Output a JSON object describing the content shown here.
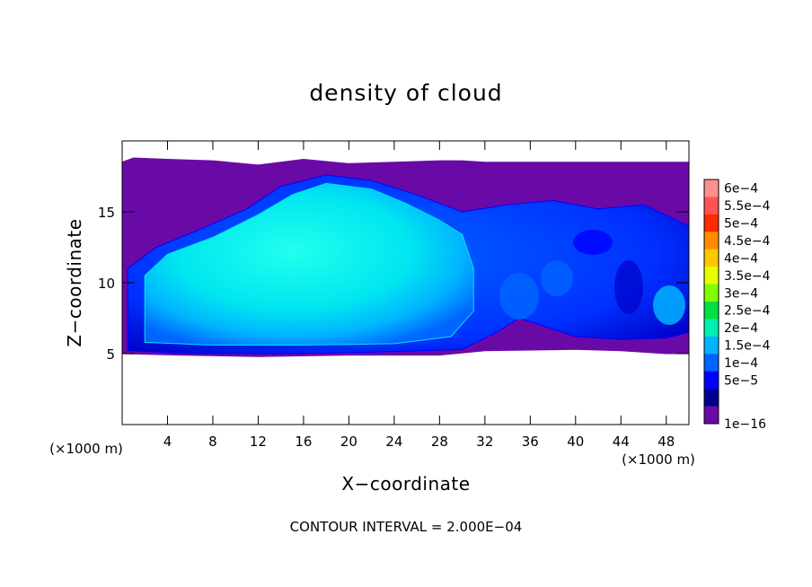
{
  "chart_data": {
    "type": "contour",
    "title": "density of cloud",
    "xlabel": "X−coordinate",
    "ylabel": "Z−coordinate",
    "x_unit": "(×1000 m)",
    "y_unit": "(×1000 m)",
    "xlim": [
      0,
      50
    ],
    "ylim": [
      0,
      20
    ],
    "x_ticks": [
      4,
      8,
      12,
      16,
      20,
      24,
      28,
      32,
      36,
      40,
      44,
      48
    ],
    "y_ticks": [
      5,
      10,
      15
    ],
    "contour_interval_label": "CONTOUR INTERVAL = 2.000E−04",
    "colorbar": {
      "levels": [
        "6e−4",
        "5.5e−4",
        "5e−4",
        "4.5e−4",
        "4e−4",
        "3.5e−4",
        "3e−4",
        "2.5e−4",
        "2e−4",
        "1.5e−4",
        "1e−4",
        "5e−5",
        "1e−16"
      ],
      "colors": [
        "#ff8f8f",
        "#ff5252",
        "#ff2a00",
        "#ff8c00",
        "#ffc800",
        "#e6ff00",
        "#80ff00",
        "#00e040",
        "#00f0b0",
        "#00b4ff",
        "#0064ff",
        "#0000ff",
        "#000090",
        "#6a0aa6"
      ]
    },
    "regions": [
      {
        "name": "cloud-layer-envelope",
        "level": "1e−16",
        "color": "#6a0aa6",
        "outline": [
          [
            0,
            5
          ],
          [
            5,
            4.9
          ],
          [
            12,
            4.8
          ],
          [
            20,
            4.9
          ],
          [
            28,
            4.9
          ],
          [
            32,
            5.2
          ],
          [
            40,
            5.3
          ],
          [
            44,
            5.2
          ],
          [
            48,
            5.0
          ],
          [
            50,
            5.0
          ],
          [
            50,
            18.5
          ],
          [
            45,
            18.5
          ],
          [
            38,
            18.5
          ],
          [
            32,
            18.5
          ],
          [
            30,
            18.6
          ],
          [
            28,
            18.6
          ],
          [
            24,
            18.5
          ],
          [
            20,
            18.4
          ],
          [
            16,
            18.7
          ],
          [
            12,
            18.3
          ],
          [
            8,
            18.6
          ],
          [
            4,
            18.7
          ],
          [
            1,
            18.8
          ],
          [
            0,
            18.5
          ]
        ]
      },
      {
        "name": "cloud-outer-shell",
        "level": "5e−5",
        "color": "#0000ff",
        "outline": [
          [
            0.5,
            5.2
          ],
          [
            6,
            5.0
          ],
          [
            14,
            5.0
          ],
          [
            22,
            5.1
          ],
          [
            30,
            5.3
          ],
          [
            33,
            6.5
          ],
          [
            35,
            7.5
          ],
          [
            37,
            7.0
          ],
          [
            40,
            6.2
          ],
          [
            44,
            6.0
          ],
          [
            48,
            6.1
          ],
          [
            50,
            6.5
          ],
          [
            50,
            14
          ],
          [
            46,
            15.5
          ],
          [
            42,
            15.2
          ],
          [
            38,
            15.8
          ],
          [
            34,
            15.5
          ],
          [
            30,
            15
          ],
          [
            26,
            16.2
          ],
          [
            22,
            17.2
          ],
          [
            18,
            17.6
          ],
          [
            14,
            16.8
          ],
          [
            11,
            15.2
          ],
          [
            7,
            13.8
          ],
          [
            3,
            12.5
          ],
          [
            0.5,
            11.0
          ]
        ]
      },
      {
        "name": "cloud-core",
        "level": "1.5e−4",
        "color": "#00e8f0",
        "outline": [
          [
            2,
            5.8
          ],
          [
            8,
            5.6
          ],
          [
            16,
            5.6
          ],
          [
            24,
            5.7
          ],
          [
            29,
            6.2
          ],
          [
            31,
            8
          ],
          [
            31,
            11
          ],
          [
            30,
            13.4
          ],
          [
            28,
            14.4
          ],
          [
            25,
            15.6
          ],
          [
            22,
            16.6
          ],
          [
            18,
            17.0
          ],
          [
            15,
            16.2
          ],
          [
            12,
            14.8
          ],
          [
            8,
            13.2
          ],
          [
            4,
            12.0
          ],
          [
            2,
            10.5
          ]
        ]
      }
    ]
  }
}
